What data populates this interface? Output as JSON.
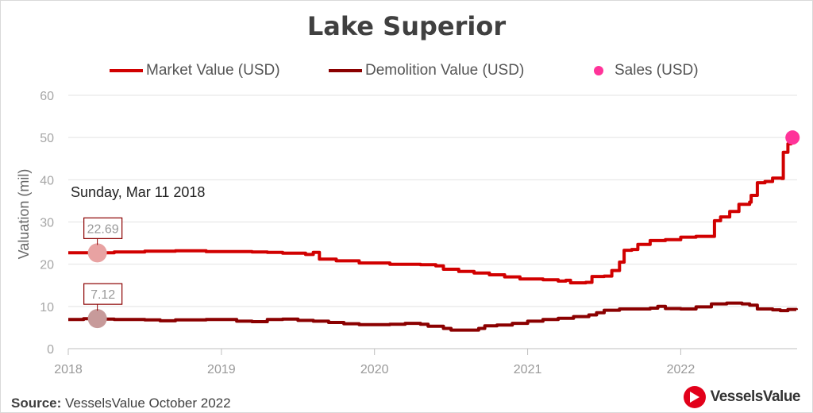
{
  "chart_data": {
    "type": "line",
    "title": "Lake Superior",
    "ylabel": "Valuation (mil)",
    "xlabel": "",
    "ylim": [
      0,
      60
    ],
    "yticks": [
      0,
      10,
      20,
      30,
      40,
      50,
      60
    ],
    "xlim": [
      2018.0,
      2022.76
    ],
    "xticks": [
      2018,
      2019,
      2020,
      2021,
      2022
    ],
    "legend_position": "top",
    "series": [
      {
        "name": "Market Value (USD)",
        "color": "#d10000",
        "points": [
          [
            2018.0,
            22.7
          ],
          [
            2018.2,
            22.7
          ],
          [
            2018.3,
            22.9
          ],
          [
            2018.5,
            23.1
          ],
          [
            2018.7,
            23.2
          ],
          [
            2018.9,
            23.0
          ],
          [
            2019.2,
            22.9
          ],
          [
            2019.3,
            22.8
          ],
          [
            2019.4,
            22.6
          ],
          [
            2019.55,
            22.3
          ],
          [
            2019.6,
            22.8
          ],
          [
            2019.63,
            22.8
          ],
          [
            2019.64,
            21.2
          ],
          [
            2019.75,
            20.8
          ],
          [
            2019.9,
            20.3
          ],
          [
            2020.1,
            20.0
          ],
          [
            2020.3,
            19.9
          ],
          [
            2020.4,
            19.6
          ],
          [
            2020.45,
            18.8
          ],
          [
            2020.55,
            18.3
          ],
          [
            2020.65,
            17.9
          ],
          [
            2020.75,
            17.5
          ],
          [
            2020.85,
            17.0
          ],
          [
            2020.95,
            16.5
          ],
          [
            2021.1,
            16.3
          ],
          [
            2021.2,
            16.0
          ],
          [
            2021.25,
            16.2
          ],
          [
            2021.28,
            15.6
          ],
          [
            2021.38,
            15.7
          ],
          [
            2021.42,
            17.1
          ],
          [
            2021.5,
            17.2
          ],
          [
            2021.55,
            18.5
          ],
          [
            2021.6,
            20.5
          ],
          [
            2021.63,
            23.3
          ],
          [
            2021.68,
            23.5
          ],
          [
            2021.72,
            24.7
          ],
          [
            2021.8,
            25.6
          ],
          [
            2021.9,
            25.8
          ],
          [
            2022.0,
            26.4
          ],
          [
            2022.1,
            26.6
          ],
          [
            2022.2,
            26.6
          ],
          [
            2022.22,
            30.3
          ],
          [
            2022.26,
            31.2
          ],
          [
            2022.32,
            32.5
          ],
          [
            2022.38,
            34.2
          ],
          [
            2022.45,
            34.7
          ],
          [
            2022.46,
            36.3
          ],
          [
            2022.5,
            39.3
          ],
          [
            2022.55,
            39.6
          ],
          [
            2022.6,
            40.4
          ],
          [
            2022.66,
            40.3
          ],
          [
            2022.67,
            46.5
          ],
          [
            2022.7,
            48.5
          ],
          [
            2022.72,
            49.5
          ],
          [
            2022.74,
            50.5
          ],
          [
            2022.755,
            50.7
          ]
        ]
      },
      {
        "name": "Demolition Value (USD)",
        "color": "#8b0000",
        "points": [
          [
            2018.0,
            6.9
          ],
          [
            2018.1,
            7.1
          ],
          [
            2018.2,
            7.0
          ],
          [
            2018.3,
            6.9
          ],
          [
            2018.5,
            6.8
          ],
          [
            2018.6,
            6.6
          ],
          [
            2018.7,
            6.8
          ],
          [
            2018.9,
            6.9
          ],
          [
            2019.1,
            6.5
          ],
          [
            2019.2,
            6.4
          ],
          [
            2019.3,
            6.9
          ],
          [
            2019.4,
            7.0
          ],
          [
            2019.5,
            6.7
          ],
          [
            2019.6,
            6.5
          ],
          [
            2019.7,
            6.2
          ],
          [
            2019.8,
            5.9
          ],
          [
            2019.9,
            5.7
          ],
          [
            2020.1,
            5.8
          ],
          [
            2020.2,
            6.0
          ],
          [
            2020.3,
            5.8
          ],
          [
            2020.35,
            5.3
          ],
          [
            2020.45,
            4.8
          ],
          [
            2020.5,
            4.4
          ],
          [
            2020.6,
            4.4
          ],
          [
            2020.68,
            4.8
          ],
          [
            2020.72,
            5.4
          ],
          [
            2020.8,
            5.6
          ],
          [
            2020.9,
            6.0
          ],
          [
            2021.0,
            6.5
          ],
          [
            2021.1,
            6.9
          ],
          [
            2021.2,
            7.2
          ],
          [
            2021.3,
            7.6
          ],
          [
            2021.4,
            8.0
          ],
          [
            2021.45,
            8.5
          ],
          [
            2021.5,
            9.1
          ],
          [
            2021.6,
            9.4
          ],
          [
            2021.7,
            9.4
          ],
          [
            2021.8,
            9.6
          ],
          [
            2021.85,
            10.0
          ],
          [
            2021.9,
            9.5
          ],
          [
            2022.0,
            9.4
          ],
          [
            2022.1,
            9.9
          ],
          [
            2022.2,
            10.6
          ],
          [
            2022.3,
            10.8
          ],
          [
            2022.4,
            10.6
          ],
          [
            2022.45,
            10.3
          ],
          [
            2022.5,
            9.4
          ],
          [
            2022.6,
            9.2
          ],
          [
            2022.65,
            9.0
          ],
          [
            2022.7,
            9.3
          ],
          [
            2022.755,
            9.2
          ]
        ]
      },
      {
        "name": "Sales (USD)",
        "color": "#ff3399",
        "points": [
          [
            2022.73,
            50.0
          ]
        ]
      }
    ],
    "tooltip": {
      "date": "Sunday, Mar 11 2018",
      "x": 2018.19,
      "values": [
        {
          "series": "Market Value (USD)",
          "label": "22.69",
          "y": 22.69,
          "color": "#e8a2a2"
        },
        {
          "series": "Demolition Value (USD)",
          "label": "7.12",
          "y": 7.12,
          "color": "#c79a9a"
        }
      ]
    }
  },
  "footer": {
    "source_label": "Source:",
    "source_text": "VesselsValue October 2022",
    "brand_name": "VesselsValue"
  }
}
